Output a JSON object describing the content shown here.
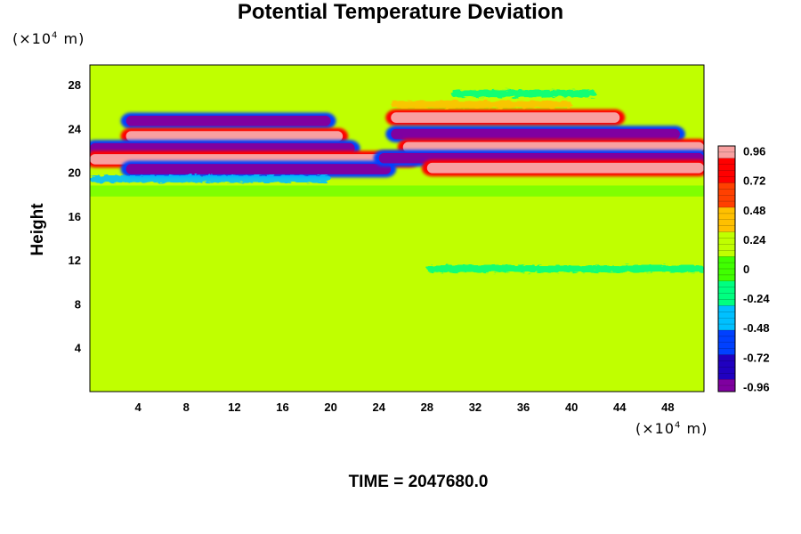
{
  "title": "Potential Temperature Deviation",
  "y_unit": {
    "prefix": "(×10",
    "exp": "4",
    "suffix": " m)"
  },
  "x_unit": {
    "prefix": "(×10",
    "exp": "4",
    "suffix": " m)"
  },
  "time_label": "TIME = 2047680.0",
  "chart_data": {
    "type": "heatmap",
    "title": "Potential Temperature Deviation",
    "xlabel": "",
    "ylabel": "Height",
    "xlim": [
      0,
      51
    ],
    "ylim": [
      0,
      29.8
    ],
    "x_ticks": [
      4,
      8,
      12,
      16,
      20,
      24,
      28,
      32,
      36,
      40,
      44,
      48
    ],
    "y_ticks": [
      4,
      8,
      12,
      16,
      20,
      24,
      28
    ],
    "colorbar": {
      "range": [
        -1.0,
        1.0
      ],
      "tick_values": [
        0.96,
        0.72,
        0.48,
        0.24,
        0,
        -0.24,
        -0.48,
        -0.72,
        -0.96
      ],
      "tick_labels": [
        "0.96",
        "0.72",
        "0.48",
        "0.24",
        "0",
        "-0.24",
        "-0.48",
        "-0.72",
        "-0.96"
      ],
      "colors": [
        "#7f00a0",
        "#2000c0",
        "#0040ff",
        "#00c0ff",
        "#00ff80",
        "#40ff00",
        "#c0ff00",
        "#ffc000",
        "#ff4000",
        "#ff0000",
        "#f8a0a0"
      ]
    },
    "bands": [
      {
        "y": 24.7,
        "x": [
          3,
          20
        ],
        "value": -0.96
      },
      {
        "y": 23.3,
        "x": [
          3,
          21
        ],
        "value": 1.0
      },
      {
        "y": 22.2,
        "x": [
          0,
          22
        ],
        "value": -0.96
      },
      {
        "y": 21.2,
        "x": [
          0,
          27
        ],
        "value": 1.0
      },
      {
        "y": 20.3,
        "x": [
          3,
          25
        ],
        "value": -0.96
      },
      {
        "y": 25.0,
        "x": [
          25,
          44
        ],
        "value": 1.0
      },
      {
        "y": 23.5,
        "x": [
          25,
          49
        ],
        "value": -0.96
      },
      {
        "y": 22.3,
        "x": [
          26,
          51
        ],
        "value": 1.0
      },
      {
        "y": 21.3,
        "x": [
          24,
          51
        ],
        "value": -0.96
      },
      {
        "y": 20.4,
        "x": [
          28,
          51
        ],
        "value": 1.0
      },
      {
        "y": 26.2,
        "x": [
          25,
          40
        ],
        "value": 0.3
      },
      {
        "y": 27.2,
        "x": [
          30,
          42
        ],
        "value": -0.3
      },
      {
        "y": 19.4,
        "x": [
          0,
          20
        ],
        "value": -0.4
      },
      {
        "y": 11.3,
        "x": [
          1,
          25
        ],
        "value": 0.28
      },
      {
        "y": 11.2,
        "x": [
          28,
          51
        ],
        "value": -0.2
      }
    ]
  }
}
